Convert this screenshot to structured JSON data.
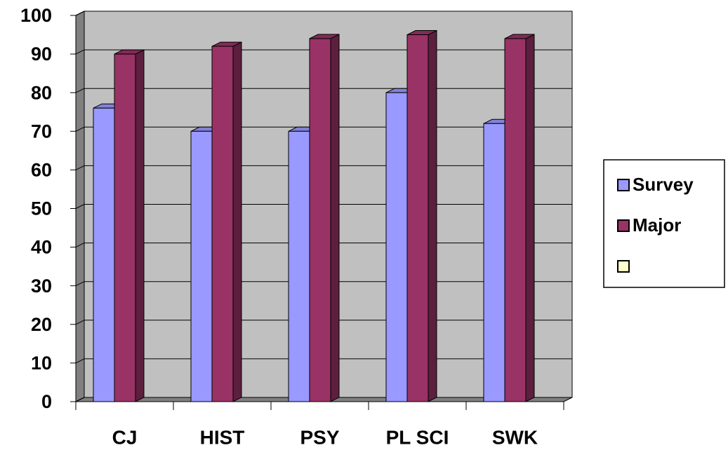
{
  "chart_data": {
    "type": "bar3d",
    "categories": [
      "CJ",
      "HIST",
      "PSY",
      "PL SCI",
      "SWK"
    ],
    "series": [
      {
        "name": "Survey",
        "color": "#9999ff",
        "values": [
          76,
          70,
          70,
          80,
          72
        ]
      },
      {
        "name": "Major",
        "color": "#993366",
        "values": [
          90,
          92,
          94,
          95,
          94
        ]
      }
    ],
    "ylim": [
      0,
      100
    ],
    "yticks": [
      0,
      10,
      20,
      30,
      40,
      50,
      60,
      70,
      80,
      90,
      100
    ],
    "grid": true,
    "legend": "right"
  }
}
